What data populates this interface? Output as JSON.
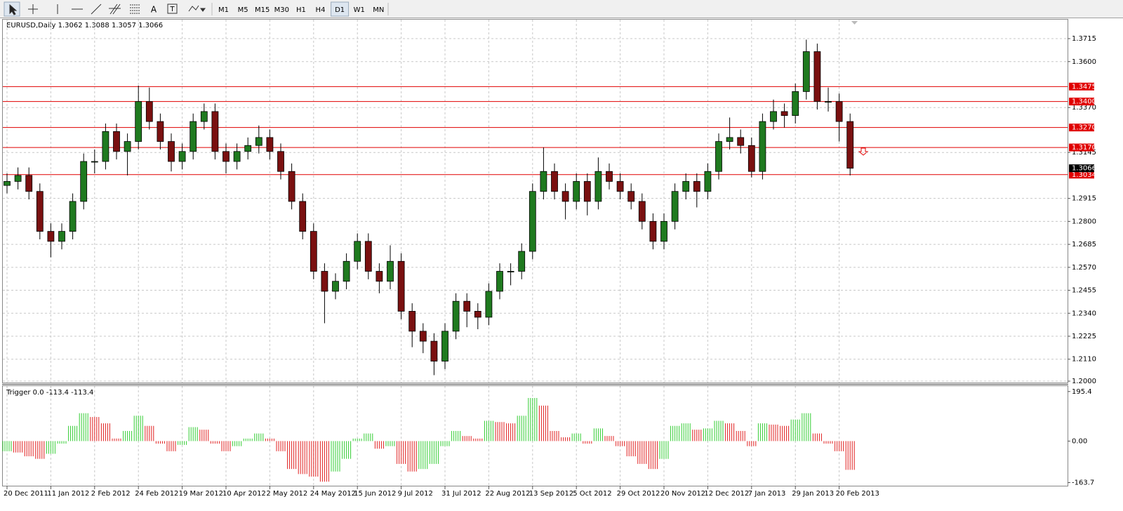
{
  "toolbar": {
    "timeframes": [
      "M1",
      "M5",
      "M15",
      "M30",
      "H1",
      "H4",
      "D1",
      "W1",
      "MN"
    ],
    "active": "D1"
  },
  "chart_data": {
    "type": "candlestick",
    "title": "EURUSD,Daily  1.3062 1.3088 1.3057 1.3066",
    "categories": [
      "20 Dec 2011",
      null,
      null,
      null,
      "11 Jan 2012",
      null,
      null,
      null,
      "2 Feb 2012",
      null,
      null,
      null,
      "24 Feb 2012",
      null,
      null,
      null,
      "19 Mar 2012",
      null,
      null,
      null,
      "10 Apr 2012",
      null,
      null,
      null,
      "2 May 2012",
      null,
      null,
      null,
      "24 May 2012",
      null,
      null,
      null,
      "15 Jun 2012",
      null,
      null,
      null,
      "9 Jul 2012",
      null,
      null,
      null,
      "31 Jul 2012",
      null,
      null,
      null,
      "22 Aug 2012",
      null,
      null,
      null,
      "13 Sep 2012",
      null,
      null,
      null,
      "5 Oct 2012",
      null,
      null,
      null,
      "29 Oct 2012",
      null,
      null,
      null,
      "20 Nov 2012",
      null,
      null,
      null,
      "12 Dec 2012",
      null,
      null,
      null,
      "7 Jan 2013",
      null,
      null,
      null,
      "29 Jan 2013",
      null,
      null,
      null,
      "20 Feb 2013",
      null
    ],
    "open": [
      1.298,
      1.3,
      1.303,
      1.295,
      1.275,
      1.27,
      1.275,
      1.29,
      1.31,
      1.31,
      1.325,
      1.315,
      1.32,
      1.34,
      1.33,
      1.32,
      1.31,
      1.315,
      1.33,
      1.335,
      1.315,
      1.31,
      1.315,
      1.318,
      1.322,
      1.315,
      1.305,
      1.29,
      1.275,
      1.255,
      1.245,
      1.25,
      1.26,
      1.27,
      1.255,
      1.25,
      1.26,
      1.235,
      1.225,
      1.22,
      1.21,
      1.225,
      1.24,
      1.235,
      1.232,
      1.245,
      1.255,
      1.255,
      1.265,
      1.295,
      1.305,
      1.295,
      1.29,
      1.3,
      1.29,
      1.305,
      1.3,
      1.295,
      1.29,
      1.28,
      1.27,
      1.28,
      1.295,
      1.3,
      1.295,
      1.305,
      1.32,
      1.322,
      1.318,
      1.305,
      1.33,
      1.335,
      1.333,
      1.345,
      1.365,
      1.34,
      1.34,
      1.33
    ],
    "high": [
      1.304,
      1.307,
      1.307,
      1.299,
      1.279,
      1.279,
      1.294,
      1.314,
      1.316,
      1.329,
      1.329,
      1.324,
      1.348,
      1.347,
      1.334,
      1.324,
      1.319,
      1.334,
      1.339,
      1.339,
      1.319,
      1.319,
      1.322,
      1.328,
      1.326,
      1.319,
      1.309,
      1.294,
      1.279,
      1.259,
      1.254,
      1.264,
      1.274,
      1.274,
      1.259,
      1.268,
      1.264,
      1.239,
      1.229,
      1.224,
      1.229,
      1.244,
      1.244,
      1.239,
      1.249,
      1.259,
      1.259,
      1.269,
      1.299,
      1.317,
      1.309,
      1.299,
      1.304,
      1.304,
      1.312,
      1.309,
      1.304,
      1.299,
      1.294,
      1.284,
      1.284,
      1.299,
      1.304,
      1.304,
      1.309,
      1.324,
      1.332,
      1.326,
      1.322,
      1.334,
      1.341,
      1.339,
      1.349,
      1.371,
      1.369,
      1.347,
      1.344,
      1.334
    ],
    "low": [
      1.294,
      1.296,
      1.291,
      1.271,
      1.262,
      1.266,
      1.271,
      1.286,
      1.304,
      1.306,
      1.311,
      1.303,
      1.316,
      1.326,
      1.316,
      1.305,
      1.306,
      1.311,
      1.326,
      1.311,
      1.304,
      1.306,
      1.311,
      1.314,
      1.311,
      1.301,
      1.286,
      1.271,
      1.251,
      1.229,
      1.241,
      1.246,
      1.256,
      1.251,
      1.244,
      1.246,
      1.231,
      1.217,
      1.214,
      1.203,
      1.206,
      1.221,
      1.227,
      1.226,
      1.228,
      1.241,
      1.248,
      1.251,
      1.261,
      1.291,
      1.291,
      1.281,
      1.286,
      1.283,
      1.286,
      1.296,
      1.291,
      1.286,
      1.276,
      1.266,
      1.266,
      1.276,
      1.291,
      1.287,
      1.291,
      1.301,
      1.316,
      1.314,
      1.302,
      1.301,
      1.326,
      1.327,
      1.329,
      1.341,
      1.336,
      1.335,
      1.32,
      1.303
    ],
    "close": [
      1.3,
      1.303,
      1.295,
      1.275,
      1.27,
      1.275,
      1.29,
      1.31,
      1.31,
      1.325,
      1.315,
      1.32,
      1.34,
      1.33,
      1.32,
      1.31,
      1.315,
      1.33,
      1.335,
      1.315,
      1.31,
      1.315,
      1.318,
      1.322,
      1.315,
      1.305,
      1.29,
      1.275,
      1.255,
      1.245,
      1.25,
      1.26,
      1.27,
      1.255,
      1.25,
      1.26,
      1.235,
      1.225,
      1.22,
      1.21,
      1.225,
      1.24,
      1.235,
      1.232,
      1.245,
      1.255,
      1.255,
      1.265,
      1.295,
      1.305,
      1.295,
      1.29,
      1.3,
      1.29,
      1.305,
      1.3,
      1.295,
      1.29,
      1.28,
      1.27,
      1.28,
      1.295,
      1.3,
      1.295,
      1.305,
      1.32,
      1.322,
      1.318,
      1.305,
      1.33,
      1.335,
      1.333,
      1.345,
      1.365,
      1.34,
      1.34,
      1.33,
      1.3066
    ],
    "up_color": "#1f7a1f",
    "down_color": "#7a1010",
    "ylim": [
      1.1993,
      1.381
    ],
    "yticks": [
      {
        "value": 1.2,
        "label": "1.2000"
      },
      {
        "value": 1.211,
        "label": "1.2110"
      },
      1.2225,
      {
        "value": 1.234,
        "label": "1.2340"
      },
      1.2455,
      {
        "value": 1.257,
        "label": "1.2570"
      },
      1.2685,
      {
        "value": 1.28,
        "label": "1.2800"
      },
      1.2915,
      1.3145,
      {
        "value": 1.337,
        "label": "1.3370"
      },
      {
        "value": 1.36,
        "label": "1.3600"
      },
      1.3715
    ],
    "levels": [
      1.3475,
      {
        "value": 1.34,
        "label": "1.3400"
      },
      {
        "value": 1.327,
        "label": "1.3270"
      },
      {
        "value": 1.317,
        "label": "1.3170"
      },
      1.3034
    ],
    "level_color": "#e00000",
    "current_price": 1.3066,
    "grid": true
  },
  "indicator": {
    "type": "histogram",
    "title": "Trigger 0.0 -113.4 -113.4",
    "values": [
      -40,
      -45,
      -60,
      -70,
      -50,
      -10,
      60,
      110,
      95,
      70,
      10,
      40,
      100,
      60,
      -10,
      -40,
      -15,
      55,
      45,
      -10,
      -40,
      -20,
      10,
      30,
      10,
      -40,
      -110,
      -130,
      -140,
      -160,
      -120,
      -70,
      10,
      30,
      -30,
      -20,
      -90,
      -120,
      -110,
      -90,
      -20,
      40,
      20,
      10,
      80,
      75,
      70,
      100,
      170,
      140,
      40,
      15,
      30,
      -10,
      50,
      20,
      -20,
      -60,
      -90,
      -110,
      -70,
      60,
      70,
      45,
      50,
      80,
      70,
      40,
      -20,
      70,
      65,
      60,
      85,
      110,
      30,
      -10,
      -40,
      -113.4
    ],
    "up_color": "#33cc33",
    "down_color": "#e02020",
    "ylim": [
      -176,
      217
    ],
    "yticks": [
      195.4,
      {
        "value": 0,
        "label": "0.00"
      },
      -163.7
    ]
  }
}
